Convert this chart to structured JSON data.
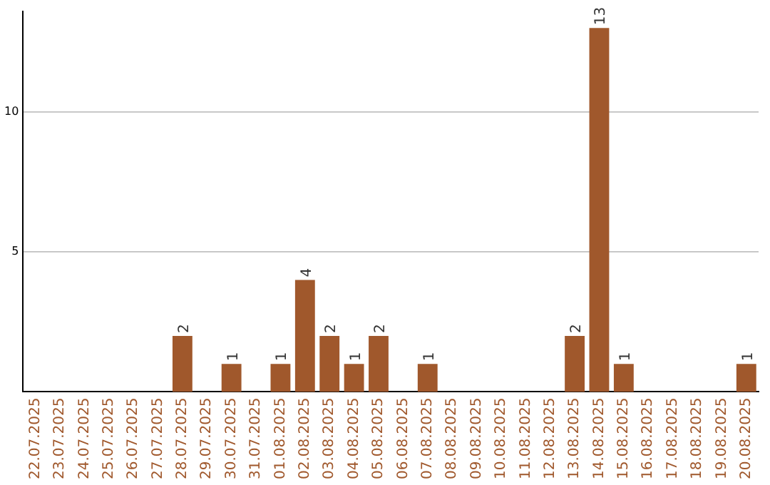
{
  "chart_data": {
    "type": "bar",
    "categories": [
      "22.07.2025",
      "23.07.2025",
      "24.07.2025",
      "25.07.2025",
      "26.07.2025",
      "27.07.2025",
      "28.07.2025",
      "29.07.2025",
      "30.07.2025",
      "31.07.2025",
      "01.08.2025",
      "02.08.2025",
      "03.08.2025",
      "04.08.2025",
      "05.08.2025",
      "06.08.2025",
      "07.08.2025",
      "08.08.2025",
      "09.08.2025",
      "10.08.2025",
      "11.08.2025",
      "12.08.2025",
      "13.08.2025",
      "14.08.2025",
      "15.08.2025",
      "16.08.2025",
      "17.08.2025",
      "18.08.2025",
      "19.08.2025",
      "20.08.2025"
    ],
    "values": [
      0,
      0,
      0,
      0,
      0,
      0,
      2,
      0,
      1,
      0,
      1,
      4,
      2,
      1,
      2,
      0,
      1,
      0,
      0,
      0,
      0,
      0,
      2,
      13,
      1,
      0,
      0,
      0,
      0,
      1
    ],
    "value_labels": [
      null,
      null,
      null,
      null,
      null,
      null,
      "2",
      null,
      "1",
      null,
      "1",
      "4",
      "2",
      "1",
      "2",
      null,
      "1",
      null,
      null,
      null,
      null,
      null,
      "2",
      "13",
      "1",
      null,
      null,
      null,
      null,
      "1"
    ],
    "color": "#a0582c",
    "ylim": [
      0,
      13.6
    ],
    "yticks": [
      5,
      10
    ],
    "grid": "y",
    "legend": false
  }
}
